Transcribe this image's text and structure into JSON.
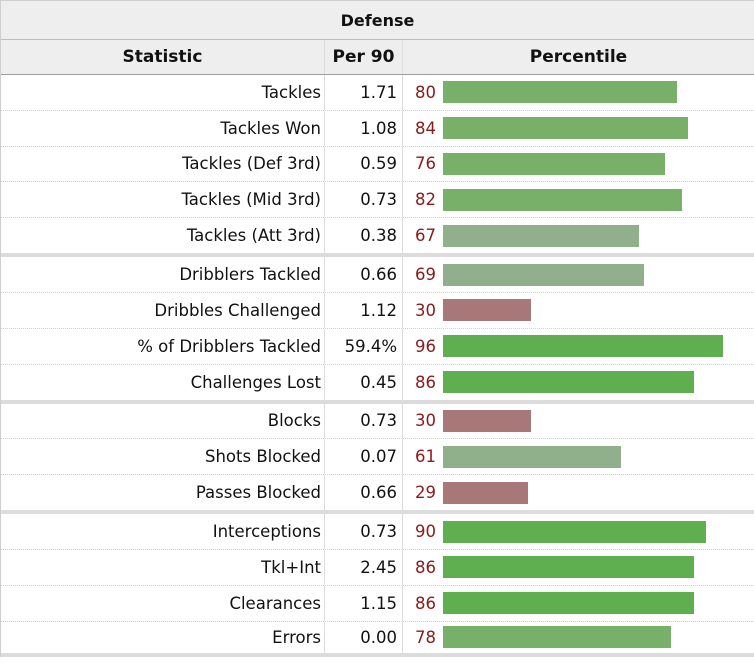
{
  "table": {
    "title": "Defense",
    "headers": {
      "statistic": "Statistic",
      "per90": "Per 90",
      "percentile": "Percentile"
    },
    "rows": [
      {
        "stat": "Tackles",
        "per90": "1.71",
        "pct": 80,
        "group_end": false
      },
      {
        "stat": "Tackles Won",
        "per90": "1.08",
        "pct": 84,
        "group_end": false
      },
      {
        "stat": "Tackles (Def 3rd)",
        "per90": "0.59",
        "pct": 76,
        "group_end": false
      },
      {
        "stat": "Tackles (Mid 3rd)",
        "per90": "0.73",
        "pct": 82,
        "group_end": false
      },
      {
        "stat": "Tackles (Att 3rd)",
        "per90": "0.38",
        "pct": 67,
        "group_end": true
      },
      {
        "stat": "Dribblers Tackled",
        "per90": "0.66",
        "pct": 69,
        "group_end": false
      },
      {
        "stat": "Dribbles Challenged",
        "per90": "1.12",
        "pct": 30,
        "group_end": false
      },
      {
        "stat": "% of Dribblers Tackled",
        "per90": "59.4%",
        "pct": 96,
        "group_end": false
      },
      {
        "stat": "Challenges Lost",
        "per90": "0.45",
        "pct": 86,
        "group_end": true
      },
      {
        "stat": "Blocks",
        "per90": "0.73",
        "pct": 30,
        "group_end": false
      },
      {
        "stat": "Shots Blocked",
        "per90": "0.07",
        "pct": 61,
        "group_end": false
      },
      {
        "stat": "Passes Blocked",
        "per90": "0.66",
        "pct": 29,
        "group_end": true
      },
      {
        "stat": "Interceptions",
        "per90": "0.73",
        "pct": 90,
        "group_end": false
      },
      {
        "stat": "Tkl+Int",
        "per90": "2.45",
        "pct": 86,
        "group_end": false
      },
      {
        "stat": "Clearances",
        "per90": "1.15",
        "pct": 86,
        "group_end": false
      },
      {
        "stat": "Errors",
        "per90": "0.00",
        "pct": 78,
        "group_end": false
      }
    ]
  },
  "colors": {
    "high": "#5fae4f",
    "mid": "#78b06a",
    "neutral": "#8fb08a",
    "low": "#a87878"
  }
}
